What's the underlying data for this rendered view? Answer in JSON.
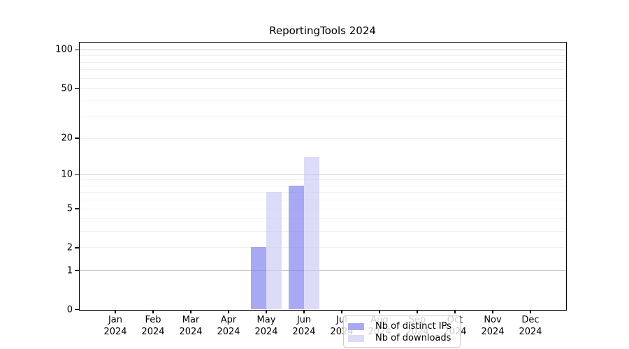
{
  "title": "ReportingTools 2024",
  "chart_data": {
    "type": "bar",
    "title": "ReportingTools 2024",
    "xlabel": "",
    "ylabel": "",
    "categories": [
      {
        "month": "Jan",
        "year": "2024"
      },
      {
        "month": "Feb",
        "year": "2024"
      },
      {
        "month": "Mar",
        "year": "2024"
      },
      {
        "month": "Apr",
        "year": "2024"
      },
      {
        "month": "May",
        "year": "2024"
      },
      {
        "month": "Jun",
        "year": "2024"
      },
      {
        "month": "Jul",
        "year": "2024"
      },
      {
        "month": "Aug",
        "year": "2024"
      },
      {
        "month": "Sep",
        "year": "2024"
      },
      {
        "month": "Oct",
        "year": "2024"
      },
      {
        "month": "Nov",
        "year": "2024"
      },
      {
        "month": "Dec",
        "year": "2024"
      }
    ],
    "series": [
      {
        "name": "Nb of distinct IPs",
        "values": [
          0,
          0,
          0,
          0,
          2,
          8,
          0,
          0,
          0,
          0,
          0,
          0
        ],
        "color": "#a9a9f1",
        "fill": "rgba(123,123,237,0.65)"
      },
      {
        "name": "Nb of downloads",
        "values": [
          0,
          0,
          0,
          0,
          7,
          14,
          0,
          0,
          0,
          0,
          0,
          0
        ],
        "color": "#dcdcf8",
        "fill": "rgba(201,201,244,0.65)"
      }
    ],
    "y_axis": {
      "scale": "log10(1+x)",
      "ylim": [
        0,
        100
      ],
      "tick_values": [
        0,
        1,
        2,
        5,
        10,
        20,
        50,
        100
      ],
      "tick_labels": [
        "0",
        "1",
        "2",
        "5",
        "10",
        "20",
        "50",
        "100"
      ],
      "major_gridlines": [
        1,
        10,
        100
      ],
      "minor_gridlines": [
        2,
        3,
        4,
        5,
        6,
        7,
        8,
        9,
        20,
        30,
        40,
        50,
        60,
        70,
        80,
        90
      ]
    },
    "grid": true,
    "legend": {
      "position": "lower-center-inside",
      "entries": [
        "Nb of distinct IPs",
        "Nb of downloads"
      ]
    }
  }
}
